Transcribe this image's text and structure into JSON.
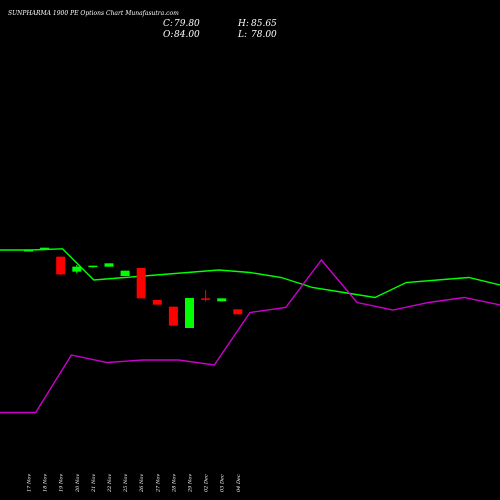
{
  "chart_data": {
    "type": "candlestick",
    "title": "SUNPHARMA 1900 PE Options Chart Munafasutra.com",
    "ohlc_readout": {
      "c_label": "C:",
      "c_value": "79.80",
      "h_label": "H:",
      "h_value": "85.65",
      "o_label": "O:",
      "o_value": "84.00",
      "l_label": "L:",
      "l_value": "78.00"
    },
    "x_labels": [
      "17 Nov",
      "18 Nov",
      "19 Nov",
      "20 Nov",
      "21 Nov",
      "22 Nov",
      "25 Nov",
      "26 Nov",
      "27 Nov",
      "28 Nov",
      "29 Nov",
      "02 Dec",
      "03 Dec",
      "04 Dec"
    ],
    "x_has_candle": [
      true,
      true,
      true,
      true,
      true,
      true,
      true,
      true,
      true,
      true,
      true,
      true,
      true,
      true
    ],
    "candles": [
      {
        "o": 96.0,
        "h": 96.2,
        "l": 95.8,
        "c": 95.8,
        "color": "green"
      },
      {
        "o": 96.5,
        "h": 96.7,
        "l": 96.3,
        "c": 96.7,
        "color": "green"
      },
      {
        "o": 94.0,
        "h": 94.0,
        "l": 88.5,
        "c": 88.7,
        "color": "red"
      },
      {
        "o": 89.5,
        "h": 91.5,
        "l": 89.0,
        "c": 91.0,
        "color": "green"
      },
      {
        "o": 91.0,
        "h": 91.3,
        "l": 90.7,
        "c": 91.3,
        "color": "green"
      },
      {
        "o": 91.0,
        "h": 92.0,
        "l": 91.0,
        "c": 92.0,
        "color": "green"
      },
      {
        "o": 89.8,
        "h": 89.8,
        "l": 88.2,
        "c": 88.2,
        "color": "green"
      },
      {
        "o": 90.6,
        "h": 90.6,
        "l": 81.5,
        "c": 81.5,
        "color": "red"
      },
      {
        "o": 81.0,
        "h": 81.0,
        "l": 79.6,
        "c": 79.6,
        "color": "red"
      },
      {
        "o": 79.0,
        "h": 79.0,
        "l": 73.3,
        "c": 73.3,
        "color": "red"
      },
      {
        "o": 81.6,
        "h": 81.6,
        "l": 72.6,
        "c": 72.6,
        "color": "green"
      },
      {
        "o": 81.5,
        "h": 84.0,
        "l": 80.6,
        "c": 81.5,
        "color": "red"
      },
      {
        "o": 81.5,
        "h": 81.5,
        "l": 80.6,
        "c": 80.6,
        "color": "green"
      },
      {
        "o": 78.2,
        "h": 78.2,
        "l": 76.7,
        "c": 76.7,
        "color": "red"
      }
    ],
    "price_range": [
      60,
      96
    ],
    "overlays": [
      {
        "color": "#00ff00",
        "values": [
          100,
          100,
          100.5,
          88,
          89,
          90,
          91,
          92,
          91,
          89,
          85,
          83,
          81,
          87,
          88,
          89,
          86
        ],
        "range": [
          0,
          200
        ]
      },
      {
        "color": "#cc00cc",
        "values": [
          35,
          35,
          58,
          55,
          56,
          56,
          54,
          75,
          77,
          96,
          79,
          76,
          79,
          81,
          78
        ],
        "range": [
          0,
          200
        ]
      }
    ],
    "colors": {
      "background": "#000000",
      "up": "#00ff00",
      "down": "#ff0000",
      "text": "#ffffff"
    },
    "grid": false
  }
}
